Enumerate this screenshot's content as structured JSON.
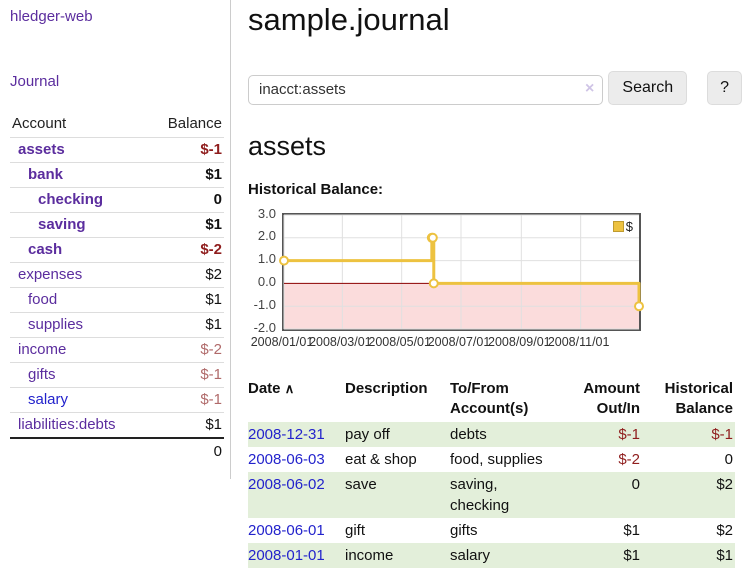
{
  "sidebar": {
    "app_title": "hledger-web",
    "nav": {
      "journal": "Journal"
    },
    "table": {
      "headers": {
        "account": "Account",
        "balance": "Balance"
      },
      "rows": [
        {
          "label": "assets",
          "balance": "$-1"
        },
        {
          "label": "bank",
          "balance": "$1"
        },
        {
          "label": "checking",
          "balance": "0"
        },
        {
          "label": "saving",
          "balance": "$1"
        },
        {
          "label": "cash",
          "balance": "$-2"
        },
        {
          "label": "expenses",
          "balance": "$2"
        },
        {
          "label": "food",
          "balance": "$1"
        },
        {
          "label": "supplies",
          "balance": "$1"
        },
        {
          "label": "income",
          "balance": "$-2"
        },
        {
          "label": "gifts",
          "balance": "$-1"
        },
        {
          "label": "salary",
          "balance": "$-1"
        },
        {
          "label": "liabilities:debts",
          "balance": "$1"
        }
      ],
      "total": "0"
    }
  },
  "header": {
    "title": "sample.journal"
  },
  "search": {
    "value": "inacct:assets",
    "clear_icon": "×",
    "button_label": "Search",
    "help_label": "?"
  },
  "section": {
    "title": "assets",
    "chart_label": "Historical Balance:"
  },
  "chart_data": {
    "type": "line",
    "title": "Historical Balance",
    "step": true,
    "x": [
      "2008-01-01",
      "2008-06-01",
      "2008-06-02",
      "2008-06-03",
      "2008-12-31"
    ],
    "series": [
      {
        "name": "$",
        "values": [
          1,
          2,
          2,
          0,
          -1
        ]
      }
    ],
    "xlim": [
      "2008-01-01",
      "2008-12-31"
    ],
    "ylim": [
      -2,
      3
    ],
    "yticks": [
      3,
      2,
      1,
      0,
      -1,
      -2
    ],
    "xticks": [
      "2008/01/01",
      "2008/03/01",
      "2008/05/01",
      "2008/07/01",
      "2008/09/01",
      "2008/11/01"
    ],
    "grid": true,
    "legend_position": "top-right",
    "legend_label": "$",
    "line_color": "#edc240",
    "grid_color": "#e0e0e0",
    "zero_line_color": "#8b0000",
    "negative_region_color": "#fbdcdc"
  },
  "register": {
    "headers": {
      "date": "Date",
      "sort_icon": "∧",
      "description": "Description",
      "account": "To/From Account(s)",
      "amount": "Amount Out/In",
      "balance": "Historical Balance"
    },
    "rows": [
      {
        "date": "2008-12-31",
        "description": "pay off",
        "accounts": "debts",
        "amount": "$-1",
        "balance": "$-1"
      },
      {
        "date": "2008-06-03",
        "description": "eat & shop",
        "accounts": "food, supplies",
        "amount": "$-2",
        "balance": "0"
      },
      {
        "date": "2008-06-02",
        "description": "save",
        "accounts": "saving, checking",
        "amount": "0",
        "balance": "$2"
      },
      {
        "date": "2008-06-01",
        "description": "gift",
        "accounts": "gifts",
        "amount": "$1",
        "balance": "$2"
      },
      {
        "date": "2008-01-01",
        "description": "income",
        "accounts": "salary",
        "amount": "$1",
        "balance": "$1"
      }
    ]
  }
}
